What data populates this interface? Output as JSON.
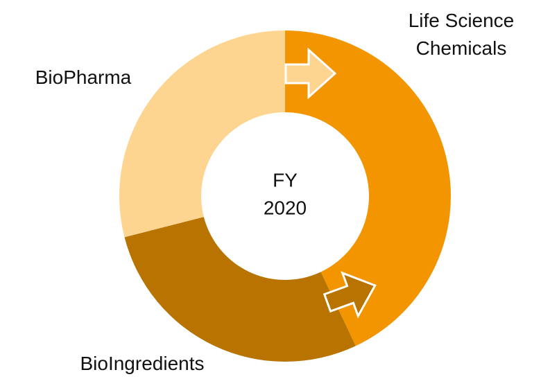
{
  "chart_data": {
    "type": "donut",
    "center_text": [
      "FY",
      "2020"
    ],
    "categories": [
      "Life Science\nChemicals",
      "BioIngredients",
      "BioPharma"
    ],
    "values": [
      43,
      28,
      29
    ],
    "colors": [
      "#f29500",
      "#b87300",
      "#fdd490"
    ]
  }
}
